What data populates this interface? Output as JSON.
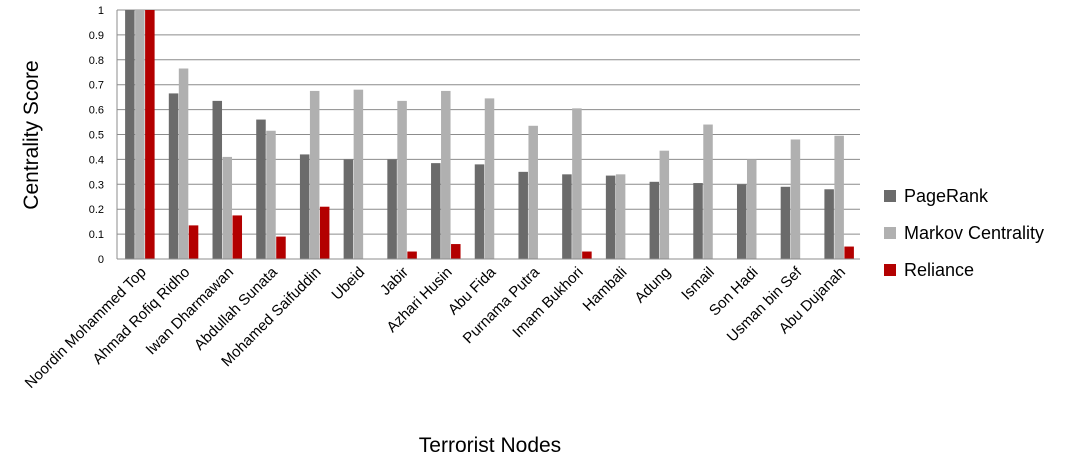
{
  "chart_data": {
    "type": "bar",
    "title": "",
    "xlabel": "Terrorist  Nodes",
    "ylabel": "Centrality  Score",
    "ylim": [
      0,
      1
    ],
    "yticks": [
      "0",
      "0.1",
      "0.2",
      "0.3",
      "0.4",
      "0.5",
      "0.6",
      "0.7",
      "0.8",
      "0.9",
      "1"
    ],
    "grid": true,
    "legend_position": "right",
    "categories": [
      "Noordin Mohammed Top",
      "Ahmad Rofiq Ridho",
      "Iwan Dharmawan",
      "Abdullah Sunata",
      "Mohamed Saifuddin",
      "Ubeid",
      "Jabir",
      "Azhari Husin",
      "Abu Fida",
      "Purnama Putra",
      "Imam Bukhori",
      "Hambali",
      "Adung",
      "Ismail",
      "Son Hadi",
      "Usman bin Sef",
      "Abu Dujanah"
    ],
    "series": [
      {
        "name": "PageRank",
        "color": "#6b6b6b",
        "values": [
          1.0,
          0.665,
          0.635,
          0.56,
          0.42,
          0.4,
          0.4,
          0.385,
          0.38,
          0.35,
          0.34,
          0.335,
          0.31,
          0.305,
          0.3,
          0.29,
          0.28
        ]
      },
      {
        "name": "Markov Centrality",
        "color": "#b0b0b0",
        "values": [
          1.0,
          0.765,
          0.41,
          0.515,
          0.675,
          0.68,
          0.635,
          0.675,
          0.645,
          0.535,
          0.605,
          0.34,
          0.435,
          0.54,
          0.4,
          0.48,
          0.495
        ]
      },
      {
        "name": "Reliance",
        "color": "#b30000",
        "values": [
          1.0,
          0.135,
          0.175,
          0.09,
          0.21,
          0.0,
          0.03,
          0.06,
          0.0,
          0.0,
          0.03,
          0.0,
          0.0,
          0.0,
          0.0,
          0.0,
          0.05
        ]
      }
    ]
  }
}
